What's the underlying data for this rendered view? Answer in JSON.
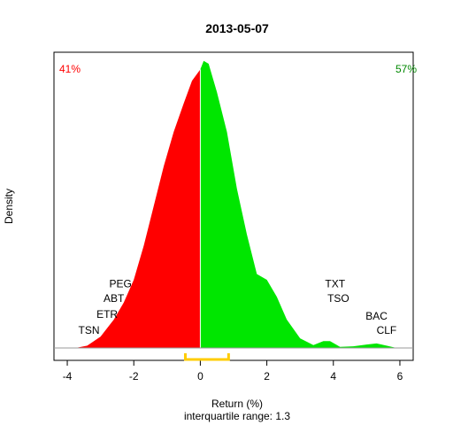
{
  "chart_data": {
    "type": "area",
    "title": "2013-05-07",
    "xlabel": "Return (%)",
    "ylabel": "Density",
    "subtitle": "interquartile range: 1.3",
    "xlim": [
      -4.4,
      6.4
    ],
    "ylim": [
      0,
      0.5
    ],
    "x_ticks": [
      -4,
      -2,
      0,
      2,
      4,
      6
    ],
    "x_tick_labels": [
      "-4",
      "-2",
      "0",
      "2",
      "4",
      "6"
    ],
    "grid": false,
    "series": [
      {
        "name": "",
        "color": "#ff0000",
        "x": [
          -3.75,
          -3.4,
          -3.0,
          -2.6,
          -2.3,
          -2.0,
          -1.7,
          -1.4,
          -1.1,
          -0.8,
          -0.5,
          -0.25,
          0.0
        ],
        "y": [
          0.0,
          0.004,
          0.02,
          0.05,
          0.08,
          0.12,
          0.18,
          0.25,
          0.32,
          0.38,
          0.43,
          0.47,
          0.49
        ]
      },
      {
        "name": "",
        "color": "#00e600",
        "x": [
          0.0,
          0.1,
          0.25,
          0.5,
          0.8,
          1.1,
          1.4,
          1.7,
          2.0,
          2.3,
          2.6,
          3.0,
          3.4,
          3.7,
          3.9,
          4.2,
          4.6,
          5.0,
          5.3,
          5.6,
          5.9
        ],
        "y": [
          0.49,
          0.505,
          0.5,
          0.45,
          0.38,
          0.28,
          0.2,
          0.13,
          0.12,
          0.09,
          0.05,
          0.017,
          0.005,
          0.012,
          0.012,
          0.002,
          0.003,
          0.006,
          0.008,
          0.004,
          0.0
        ]
      }
    ],
    "split_x": 0,
    "corner_labels": {
      "left": {
        "text": "41%",
        "color": "#ff0000"
      },
      "right": {
        "text": "57%",
        "color": "#008800"
      }
    },
    "ticker_labels": [
      {
        "text": "PEG",
        "x": -2.4,
        "y": 0.107
      },
      {
        "text": "ABT",
        "x": -2.6,
        "y": 0.081
      },
      {
        "text": "ETR",
        "x": -2.8,
        "y": 0.053
      },
      {
        "text": "TSN",
        "x": -3.35,
        "y": 0.025
      },
      {
        "text": "TXT",
        "x": 4.05,
        "y": 0.107
      },
      {
        "text": "TSO",
        "x": 4.15,
        "y": 0.081
      },
      {
        "text": "BAC",
        "x": 5.3,
        "y": 0.05
      },
      {
        "text": "CLF",
        "x": 5.6,
        "y": 0.025
      }
    ],
    "iqr": {
      "low": -0.45,
      "high": 0.85,
      "color": "#ffcc00"
    }
  }
}
